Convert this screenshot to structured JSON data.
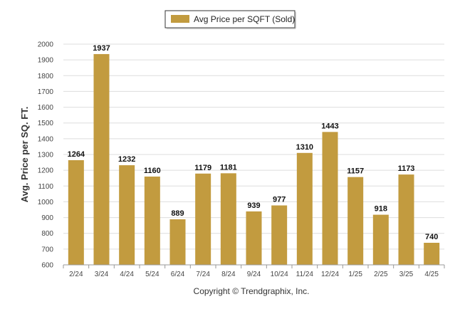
{
  "chart_data": {
    "type": "bar",
    "categories": [
      "2/24",
      "3/24",
      "4/24",
      "5/24",
      "6/24",
      "7/24",
      "8/24",
      "9/24",
      "10/24",
      "11/24",
      "12/24",
      "1/25",
      "2/25",
      "3/25",
      "4/25"
    ],
    "series": [
      {
        "name": "Avg Price per SQFT (Sold)",
        "values": [
          1264,
          1937,
          1232,
          1160,
          889,
          1179,
          1181,
          939,
          977,
          1310,
          1443,
          1157,
          918,
          1173,
          740
        ]
      }
    ],
    "ylabel": "Avg. Price per SQ. FT.",
    "xlabel": "",
    "ylim": [
      600,
      2000
    ],
    "yticks": [
      600,
      700,
      800,
      900,
      1000,
      1100,
      1200,
      1300,
      1400,
      1500,
      1600,
      1700,
      1800,
      1900,
      2000
    ],
    "grid": true,
    "legend_position": "top-center",
    "bar_color": "#C29B3F"
  },
  "footer": {
    "copyright": "Copyright © Trendgraphix, Inc."
  }
}
